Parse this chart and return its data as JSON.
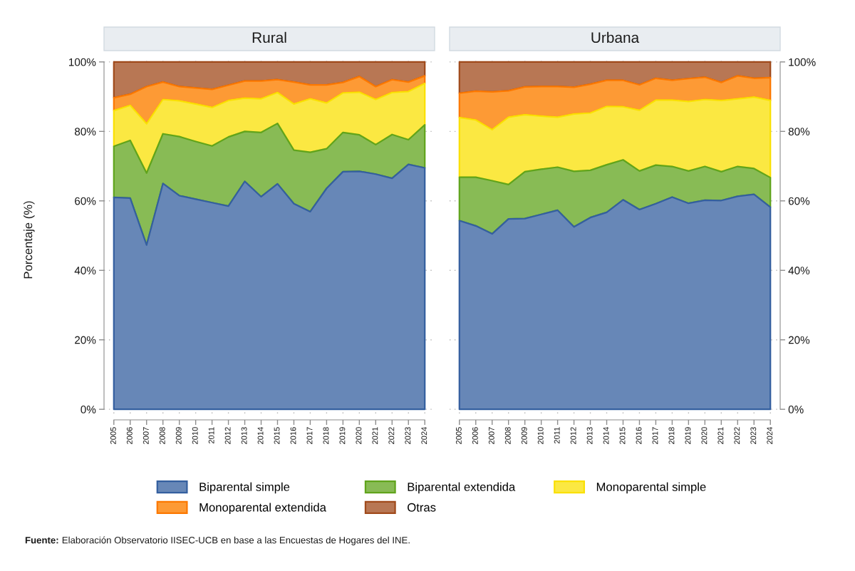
{
  "chart_data": [
    {
      "type": "area",
      "stacked": true,
      "title": "Rural",
      "ylabel": "Porcentaje (%)",
      "categories": [
        "2005",
        "2006",
        "2007",
        "2008",
        "2009",
        "2010",
        "2011",
        "2012",
        "2013",
        "2014",
        "2015",
        "2016",
        "2017",
        "2018",
        "2019",
        "2020",
        "2021",
        "2022",
        "2023",
        "2024"
      ],
      "series": [
        {
          "name": "Biparental simple",
          "color": "#6787b7",
          "values": [
            61.0,
            60.8,
            47.3,
            65.0,
            61.5,
            60.5,
            59.5,
            58.5,
            65.6,
            61.2,
            64.9,
            59.2,
            56.9,
            63.6,
            68.4,
            68.5,
            67.7,
            66.5,
            70.5,
            69.5
          ]
        },
        {
          "name": "Biparental extendida",
          "color": "#88bb55",
          "values": [
            14.7,
            16.6,
            20.7,
            14.3,
            17.0,
            16.6,
            16.3,
            19.9,
            14.4,
            18.5,
            17.4,
            15.4,
            17.1,
            11.4,
            11.3,
            10.5,
            8.5,
            12.6,
            7.1,
            12.4
          ]
        },
        {
          "name": "Monoparental simple",
          "color": "#fbe842",
          "values": [
            10.3,
            10.1,
            14.2,
            9.9,
            10.3,
            10.8,
            11.1,
            10.5,
            9.6,
            9.7,
            8.9,
            13.3,
            15.4,
            13.2,
            11.4,
            12.3,
            13.0,
            12.1,
            13.9,
            11.9
          ]
        },
        {
          "name": "Monoparental extendida",
          "color": "#fd9a35",
          "values": [
            3.7,
            3.2,
            10.7,
            5.0,
            4.1,
            4.6,
            5.2,
            4.4,
            4.9,
            5.1,
            3.7,
            6.3,
            4.0,
            5.2,
            3.0,
            4.5,
            3.7,
            3.7,
            2.7,
            2.2
          ]
        },
        {
          "name": "Otras",
          "color": "#b87754",
          "values": [
            10.3,
            9.3,
            7.1,
            5.8,
            7.1,
            7.5,
            7.9,
            6.7,
            5.5,
            5.5,
            5.1,
            5.8,
            6.6,
            6.6,
            5.9,
            4.2,
            7.1,
            5.1,
            5.8,
            4.0
          ]
        }
      ],
      "ylim": [
        0,
        100
      ],
      "yticks": [
        {
          "value": 0,
          "label": "0%"
        },
        {
          "value": 20,
          "label": "20%"
        },
        {
          "value": 40,
          "label": "40%"
        },
        {
          "value": 60,
          "label": "60%"
        },
        {
          "value": 80,
          "label": "80%"
        },
        {
          "value": 100,
          "label": "100%"
        }
      ],
      "grid": true,
      "legend": "bottom",
      "annotations": [
        "Fuente:",
        "Elaboración Observatorio IISEC-UCB en base a las Encuestas de Hogares del INE."
      ]
    },
    {
      "type": "area",
      "stacked": true,
      "title": "Urbana",
      "categories": [
        "2005",
        "2006",
        "2007",
        "2008",
        "2009",
        "2010",
        "2011",
        "2012",
        "2013",
        "2014",
        "2015",
        "2016",
        "2017",
        "2018",
        "2019",
        "2020",
        "2021",
        "2022",
        "2023",
        "2024"
      ],
      "series": [
        {
          "name": "Biparental simple",
          "color": "#6787b7",
          "values": [
            54.3,
            52.8,
            50.5,
            54.8,
            54.9,
            56.1,
            57.3,
            52.5,
            55.2,
            56.7,
            60.3,
            57.5,
            59.2,
            61.1,
            59.3,
            60.2,
            60.1,
            61.3,
            61.9,
            58.2
          ]
        },
        {
          "name": "Biparental extendida",
          "color": "#88bb55",
          "values": [
            12.5,
            14.0,
            15.3,
            9.9,
            13.5,
            13.0,
            12.4,
            16.0,
            13.6,
            13.7,
            11.5,
            11.1,
            11.1,
            8.8,
            9.3,
            9.7,
            8.3,
            8.6,
            7.4,
            8.5
          ]
        },
        {
          "name": "Monoparental simple",
          "color": "#fbe842",
          "values": [
            17.2,
            16.5,
            14.7,
            19.4,
            16.4,
            15.3,
            14.4,
            16.5,
            16.5,
            16.8,
            15.3,
            17.5,
            18.7,
            19.1,
            20.0,
            19.3,
            20.5,
            19.5,
            20.6,
            22.2
          ]
        },
        {
          "name": "Monoparental extendida",
          "color": "#fd9a35",
          "values": [
            7.0,
            8.3,
            10.9,
            7.6,
            8.0,
            8.5,
            8.8,
            7.7,
            8.3,
            7.5,
            7.6,
            7.3,
            6.3,
            5.7,
            6.6,
            6.4,
            5.2,
            6.6,
            5.4,
            6.6
          ]
        },
        {
          "name": "Otras",
          "color": "#b87754",
          "values": [
            9.0,
            8.4,
            8.6,
            8.3,
            7.2,
            7.1,
            7.1,
            7.3,
            6.4,
            5.3,
            5.3,
            6.6,
            4.7,
            5.3,
            4.8,
            4.4,
            5.9,
            4.0,
            4.7,
            4.5
          ]
        }
      ],
      "ylim": [
        0,
        100
      ],
      "yticks": [
        {
          "value": 0,
          "label": "0%"
        },
        {
          "value": 20,
          "label": "20%"
        },
        {
          "value": 40,
          "label": "40%"
        },
        {
          "value": 60,
          "label": "60%"
        },
        {
          "value": 80,
          "label": "80%"
        },
        {
          "value": 100,
          "label": "100%"
        }
      ],
      "grid": true,
      "legend": "bottom"
    }
  ]
}
